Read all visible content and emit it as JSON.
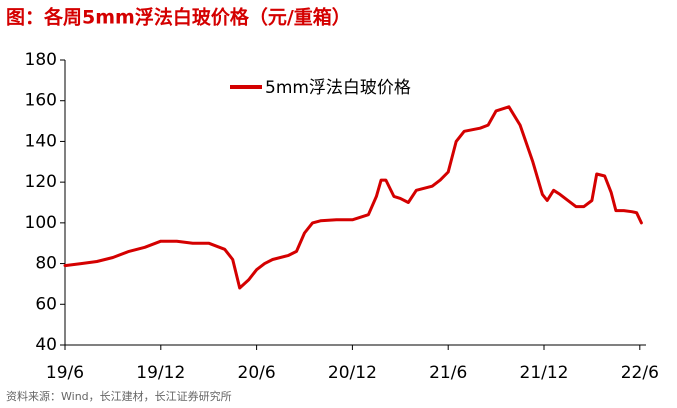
{
  "chart_data": {
    "type": "line",
    "title": "图：各周5mm浮法白玻价格（元/重箱）",
    "source": "资料来源：Wind，长江建材，长江证券研究所",
    "xlim": [
      0,
      36.2
    ],
    "xticks": [
      {
        "value": 0,
        "label": "19/6"
      },
      {
        "value": 6,
        "label": "19/12"
      },
      {
        "value": 12,
        "label": "20/6"
      },
      {
        "value": 18,
        "label": "20/12"
      },
      {
        "value": 24,
        "label": "21/6"
      },
      {
        "value": 30,
        "label": "21/12"
      },
      {
        "value": 36,
        "label": "22/6"
      }
    ],
    "ylim": [
      40,
      180
    ],
    "yticks": [
      40,
      60,
      80,
      100,
      120,
      140,
      160,
      180
    ],
    "legend": "top",
    "series": [
      {
        "name": "5mm浮法白玻价格",
        "color": "#d40000",
        "x": [
          0,
          1,
          2,
          3,
          4,
          5,
          6,
          7,
          8,
          9,
          10,
          10.5,
          10.94,
          11.5,
          12,
          12.5,
          13,
          14,
          14.5,
          15,
          15.5,
          16,
          17,
          18,
          19,
          19.5,
          19.8,
          20.1,
          20.6,
          21,
          21.5,
          22,
          23,
          23.5,
          24,
          24.5,
          25,
          26,
          26.5,
          27,
          27.8,
          28.5,
          29.3,
          29.9,
          30.2,
          30.6,
          31,
          32,
          32.5,
          33,
          33.3,
          33.8,
          34.2,
          34.5,
          35,
          35.5,
          35.8,
          36.1
        ],
        "values": [
          79,
          80,
          81,
          83,
          86,
          88,
          91,
          91,
          90,
          90,
          87,
          82,
          68,
          72,
          77,
          80,
          82,
          84,
          86,
          95,
          100,
          101,
          101.5,
          101.5,
          104,
          113,
          121,
          121,
          113,
          112,
          110,
          116,
          118,
          121,
          125,
          140,
          145,
          146.5,
          148,
          155,
          157,
          148,
          130,
          114,
          111,
          116,
          114,
          108,
          108,
          111,
          124,
          123,
          115,
          106,
          106,
          105.5,
          105,
          100
        ]
      }
    ]
  }
}
